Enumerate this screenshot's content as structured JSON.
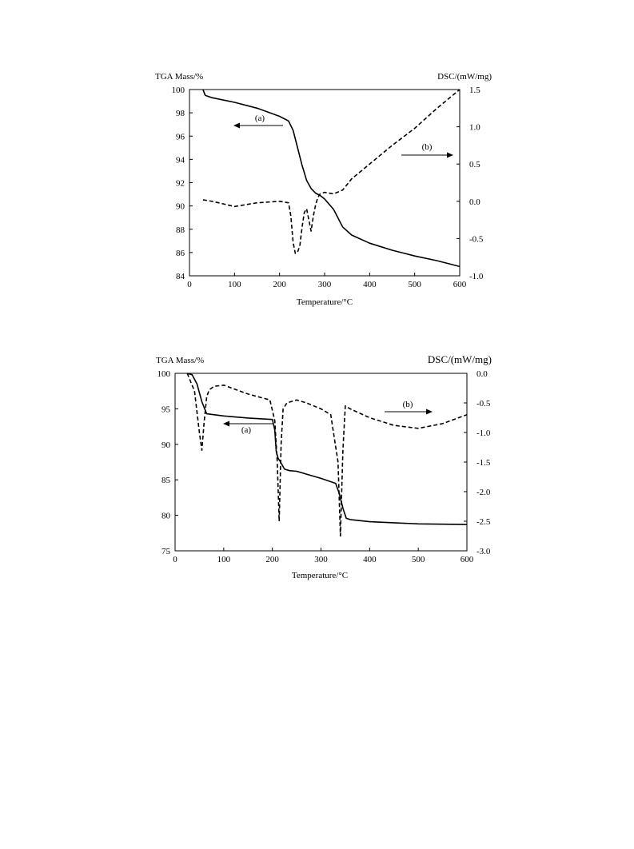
{
  "chart_data": [
    {
      "type": "line",
      "xlabel": "Temperature/°C",
      "ylabel_left": "TGA Mass/%",
      "ylabel_right": "DSC/(mW/mg)",
      "xlim": [
        0,
        600
      ],
      "ylim_left": [
        84,
        100
      ],
      "ylim_right": [
        -1.0,
        1.5
      ],
      "x_ticks": [
        "0",
        "100",
        "200",
        "300",
        "400",
        "500",
        "600"
      ],
      "y_left_ticks": [
        "84",
        "86",
        "88",
        "90",
        "92",
        "94",
        "96",
        "98",
        "100"
      ],
      "y_right_ticks": [
        "-1.0",
        "-0.5",
        "0.0",
        "0.5",
        "1.0",
        "1.5"
      ],
      "grid": false,
      "series": [
        {
          "name": "(a)",
          "axis": "left",
          "style": "solid",
          "x": [
            30,
            35,
            50,
            100,
            150,
            200,
            220,
            230,
            240,
            250,
            260,
            270,
            280,
            290,
            300,
            320,
            340,
            360,
            400,
            450,
            500,
            550,
            600
          ],
          "y": [
            100,
            99.5,
            99.3,
            98.9,
            98.4,
            97.7,
            97.3,
            96.5,
            95.0,
            93.5,
            92.2,
            91.5,
            91.1,
            90.9,
            90.6,
            89.7,
            88.2,
            87.5,
            86.8,
            86.2,
            85.7,
            85.3,
            84.8
          ]
        },
        {
          "name": "(b)",
          "axis": "right",
          "style": "dashed",
          "x": [
            30,
            50,
            100,
            150,
            200,
            220,
            225,
            230,
            235,
            240,
            245,
            250,
            255,
            260,
            265,
            270,
            275,
            280,
            285,
            290,
            300,
            320,
            340,
            360,
            400,
            450,
            500,
            550,
            600
          ],
          "y": [
            0.02,
            0.0,
            -0.07,
            -0.02,
            0.0,
            -0.02,
            -0.2,
            -0.55,
            -0.7,
            -0.68,
            -0.6,
            -0.35,
            -0.15,
            -0.1,
            -0.25,
            -0.4,
            -0.2,
            -0.05,
            0.05,
            0.1,
            0.12,
            0.1,
            0.15,
            0.3,
            0.5,
            0.75,
            0.98,
            1.25,
            1.5
          ]
        }
      ],
      "annotations": [
        {
          "label": "(a)",
          "arrow": "left"
        },
        {
          "label": "(b)",
          "arrow": "right"
        }
      ]
    },
    {
      "type": "line",
      "xlabel": "Temperature/°C",
      "ylabel_left": "TGA Mass/%",
      "ylabel_right": "DSC/(mW/mg)",
      "xlim": [
        0,
        600
      ],
      "ylim_left": [
        75,
        100
      ],
      "ylim_right": [
        -3.0,
        0.0
      ],
      "x_ticks": [
        "0",
        "100",
        "200",
        "300",
        "400",
        "500",
        "600"
      ],
      "y_left_ticks": [
        "75",
        "80",
        "85",
        "90",
        "95",
        "100"
      ],
      "y_right_ticks": [
        "-3.0",
        "-2.5",
        "-2.0",
        "-1.5",
        "-1.0",
        "-0.5",
        "0.0"
      ],
      "grid": false,
      "series": [
        {
          "name": "(a)",
          "axis": "left",
          "style": "solid",
          "x": [
            25,
            35,
            45,
            55,
            65,
            100,
            150,
            200,
            205,
            208,
            212,
            216,
            225,
            235,
            250,
            300,
            330,
            338,
            345,
            352,
            360,
            400,
            500,
            600
          ],
          "y": [
            100,
            99.8,
            98.5,
            96,
            94.3,
            94.0,
            93.7,
            93.5,
            92,
            89,
            88,
            87.6,
            86.5,
            86.3,
            86.2,
            85.2,
            84.5,
            83,
            81,
            79.6,
            79.4,
            79.1,
            78.8,
            78.7
          ]
        },
        {
          "name": "(b)",
          "axis": "right",
          "style": "dashed",
          "x": [
            25,
            40,
            50,
            55,
            60,
            65,
            70,
            80,
            100,
            150,
            195,
            205,
            210,
            214,
            218,
            222,
            230,
            250,
            270,
            300,
            320,
            335,
            340,
            345,
            350,
            360,
            400,
            450,
            500,
            550,
            600
          ],
          "y": [
            0.0,
            -0.3,
            -1.0,
            -1.3,
            -0.8,
            -0.4,
            -0.28,
            -0.22,
            -0.2,
            -0.35,
            -0.45,
            -0.8,
            -1.5,
            -2.5,
            -1.2,
            -0.6,
            -0.5,
            -0.45,
            -0.5,
            -0.6,
            -0.7,
            -1.5,
            -2.75,
            -1.3,
            -0.55,
            -0.6,
            -0.75,
            -0.88,
            -0.93,
            -0.85,
            -0.7
          ]
        }
      ],
      "annotations": [
        {
          "label": "(a)",
          "arrow": "left"
        },
        {
          "label": "(b)",
          "arrow": "right"
        }
      ]
    }
  ]
}
